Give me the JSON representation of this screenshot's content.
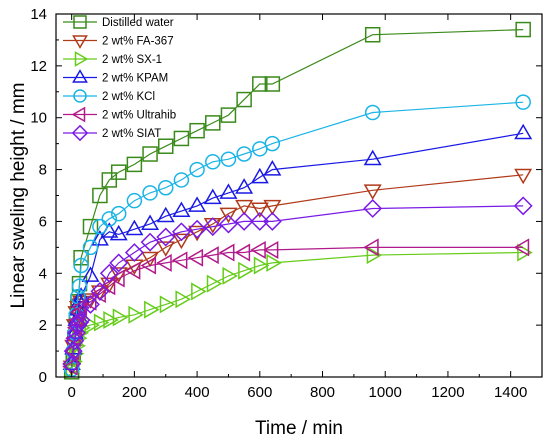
{
  "chart_data": {
    "type": "line",
    "xlabel": "Time / min",
    "ylabel": "Linear sweling height / mm",
    "xlim": [
      -50,
      1500
    ],
    "ylim": [
      0,
      14
    ],
    "xticks": [
      0,
      200,
      400,
      600,
      800,
      1000,
      1200,
      1400
    ],
    "yticks": [
      0,
      2,
      4,
      6,
      8,
      10,
      12,
      14
    ],
    "grid": false,
    "legend_position": "top-left",
    "series": [
      {
        "name": "Distilled water",
        "color": "#3a8a1a",
        "marker": "square",
        "x": [
          0,
          5,
          10,
          15,
          20,
          25,
          30,
          60,
          90,
          120,
          150,
          200,
          250,
          300,
          350,
          400,
          450,
          500,
          550,
          600,
          640,
          960,
          1440
        ],
        "y": [
          0.2,
          0.8,
          1.5,
          2.2,
          2.9,
          3.6,
          4.6,
          5.8,
          7.0,
          7.6,
          7.9,
          8.2,
          8.6,
          8.9,
          9.2,
          9.5,
          9.8,
          10.1,
          10.7,
          11.3,
          11.3,
          13.2,
          13.4
        ]
      },
      {
        "name": "2 wt% FA-367",
        "color": "#b03a1a",
        "marker": "triangle-down",
        "x": [
          0,
          5,
          10,
          15,
          20,
          25,
          30,
          60,
          90,
          120,
          150,
          200,
          250,
          300,
          350,
          400,
          450,
          500,
          550,
          600,
          640,
          960,
          1440
        ],
        "y": [
          0.4,
          1.2,
          2.0,
          2.5,
          2.7,
          2.8,
          2.9,
          3.0,
          3.3,
          3.6,
          4.0,
          4.3,
          4.6,
          5.0,
          5.3,
          5.6,
          5.9,
          6.3,
          6.6,
          6.5,
          6.6,
          7.2,
          7.8
        ]
      },
      {
        "name": "2 wt% SX-1",
        "color": "#66cc1a",
        "marker": "triangle-right",
        "x": [
          0,
          5,
          10,
          15,
          20,
          25,
          30,
          60,
          90,
          120,
          150,
          200,
          250,
          300,
          350,
          400,
          450,
          500,
          550,
          600,
          640,
          960,
          1440
        ],
        "y": [
          0.3,
          0.6,
          0.9,
          1.2,
          1.5,
          1.7,
          1.9,
          2.0,
          2.1,
          2.2,
          2.3,
          2.4,
          2.6,
          2.8,
          3.0,
          3.3,
          3.6,
          3.9,
          4.1,
          4.3,
          4.4,
          4.7,
          4.8
        ]
      },
      {
        "name": "2 wt% KPAM",
        "color": "#1a1ae6",
        "marker": "triangle-up",
        "x": [
          0,
          5,
          10,
          15,
          20,
          25,
          30,
          60,
          90,
          120,
          150,
          200,
          250,
          300,
          350,
          400,
          450,
          500,
          550,
          600,
          640,
          960,
          1440
        ],
        "y": [
          0.5,
          1.1,
          1.7,
          2.2,
          2.6,
          2.9,
          3.1,
          3.9,
          5.3,
          5.6,
          5.5,
          5.7,
          5.9,
          6.2,
          6.4,
          6.6,
          6.9,
          7.1,
          7.3,
          7.7,
          8.0,
          8.4,
          9.4
        ]
      },
      {
        "name": "2 wt% KCl",
        "color": "#1ab4e6",
        "marker": "circle",
        "x": [
          0,
          5,
          10,
          15,
          20,
          25,
          30,
          60,
          90,
          120,
          150,
          200,
          250,
          300,
          350,
          400,
          450,
          500,
          550,
          600,
          640,
          960,
          1440
        ],
        "y": [
          0.3,
          1.0,
          1.7,
          2.4,
          3.1,
          3.5,
          4.3,
          5.0,
          5.8,
          6.1,
          6.3,
          6.8,
          7.1,
          7.3,
          7.6,
          8.0,
          8.3,
          8.4,
          8.6,
          8.8,
          9.0,
          10.2,
          10.6
        ]
      },
      {
        "name": "2 wt% Ultrahib",
        "color": "#b01a8a",
        "marker": "triangle-left",
        "x": [
          0,
          5,
          10,
          15,
          20,
          25,
          30,
          60,
          90,
          120,
          150,
          200,
          250,
          300,
          350,
          400,
          450,
          500,
          550,
          600,
          640,
          960,
          1440
        ],
        "y": [
          0.4,
          1.0,
          1.5,
          1.9,
          2.2,
          2.5,
          2.7,
          2.9,
          3.2,
          3.5,
          3.8,
          4.1,
          4.3,
          4.4,
          4.5,
          4.6,
          4.7,
          4.8,
          4.8,
          4.9,
          4.9,
          5.0,
          5.0
        ]
      },
      {
        "name": "2 wt% SIAT",
        "color": "#7a1ae6",
        "marker": "diamond",
        "x": [
          0,
          5,
          10,
          15,
          20,
          25,
          30,
          60,
          90,
          120,
          150,
          200,
          250,
          300,
          350,
          400,
          450,
          500,
          550,
          600,
          640,
          960,
          1440
        ],
        "y": [
          0.5,
          1.0,
          1.4,
          1.7,
          2.0,
          2.1,
          2.2,
          2.8,
          3.3,
          4.0,
          4.4,
          4.8,
          5.2,
          5.4,
          5.6,
          5.7,
          5.8,
          5.9,
          6.0,
          6.0,
          6.0,
          6.5,
          6.6
        ]
      }
    ]
  }
}
